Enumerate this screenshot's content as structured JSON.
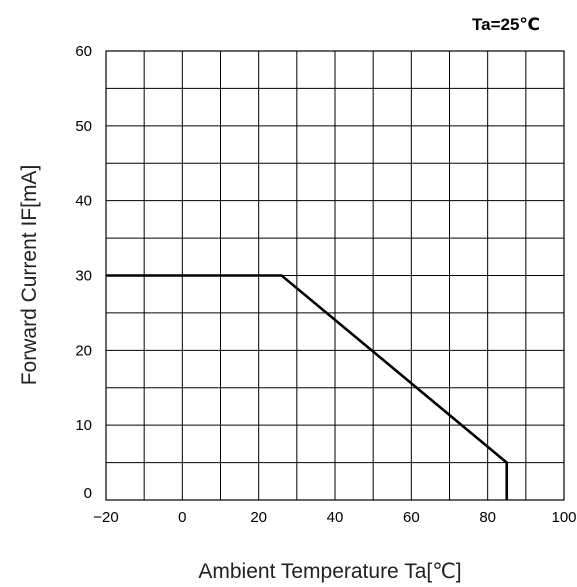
{
  "chart_data": {
    "type": "line",
    "title": "",
    "annotation": "Ta=25℃",
    "xlabel": "Ambient Temperature Ta[℃]",
    "ylabel": "Forward Current IF[mA]",
    "xlim": [
      -20,
      100
    ],
    "ylim": [
      0,
      60
    ],
    "x_ticks": [
      -20,
      0,
      20,
      40,
      60,
      80,
      100
    ],
    "y_ticks": [
      0,
      10,
      20,
      30,
      40,
      50,
      60
    ],
    "grid": true,
    "line_color": "#000000",
    "series": [
      {
        "x": [
          -20,
          26,
          85,
          85
        ],
        "y": [
          30,
          30,
          5,
          0
        ]
      }
    ]
  }
}
